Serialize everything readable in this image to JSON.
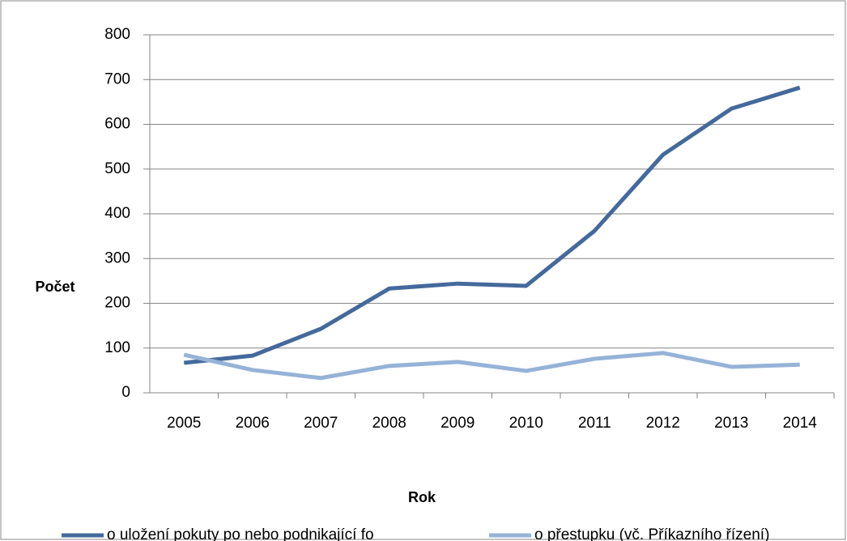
{
  "chart_data": {
    "type": "line",
    "categories": [
      "2005",
      "2006",
      "2007",
      "2008",
      "2009",
      "2010",
      "2011",
      "2012",
      "2013",
      "2014"
    ],
    "series": [
      {
        "name": "o uložení pokuty po nebo podnikající fo",
        "color": "#44699c",
        "values": [
          67,
          83,
          143,
          233,
          244,
          239,
          362,
          532,
          635,
          682
        ]
      },
      {
        "name": "o přestupku (vč. Příkazního řízení)",
        "color": "#95b3d7",
        "values": [
          85,
          51,
          33,
          60,
          69,
          49,
          76,
          89,
          58,
          63
        ]
      }
    ],
    "xlabel": "Rok",
    "ylabel": "Počet",
    "ylim": [
      0,
      800
    ],
    "yticks": [
      0,
      100,
      200,
      300,
      400,
      500,
      600,
      700,
      800
    ],
    "grid": true,
    "legend": "bottom"
  }
}
